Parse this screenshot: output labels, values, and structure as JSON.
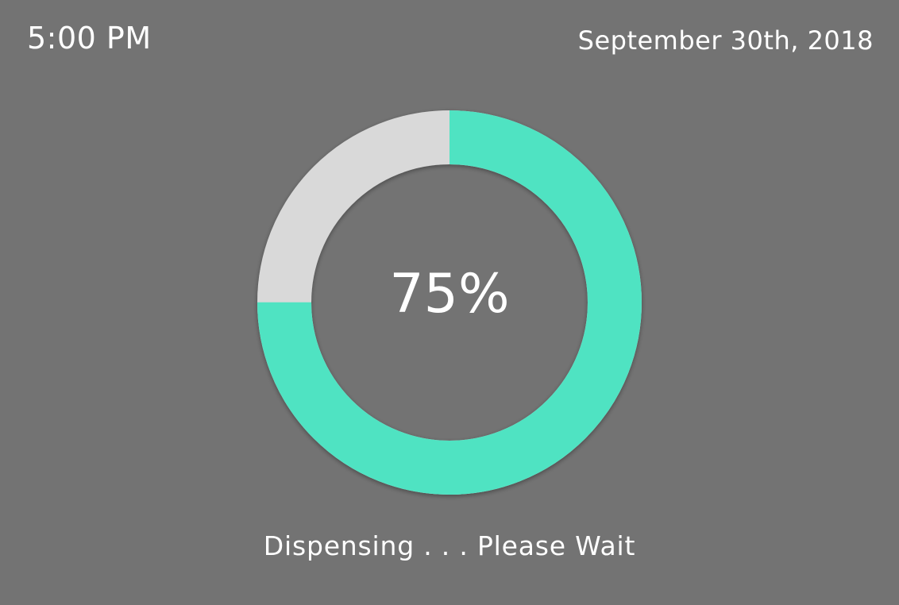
{
  "header": {
    "time": "5:00 PM",
    "date": "September 30th, 2018"
  },
  "progress": {
    "value": 0.75,
    "label": "75%",
    "fill_color": "#50E3C2",
    "track_color": "#D9D9D9"
  },
  "status": {
    "message": "Dispensing . . . Please Wait"
  }
}
